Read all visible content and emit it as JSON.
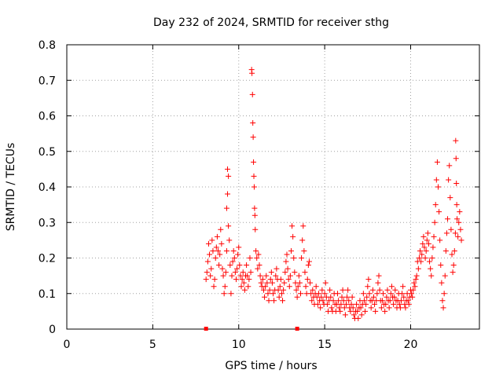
{
  "chart_data": {
    "type": "scatter",
    "title": "Day 232 of 2024, SRMTID for receiver sthg",
    "xlabel": "GPS time / hours",
    "ylabel": "SRMTID / TECUs",
    "xlim": [
      0,
      24
    ],
    "ylim": [
      0,
      0.8
    ],
    "xticks": [
      0,
      5,
      10,
      15,
      20
    ],
    "yticks": [
      0,
      0.1,
      0.2,
      0.3,
      0.4,
      0.5,
      0.6,
      0.7,
      0.8
    ],
    "xtick_labels": [
      "0",
      "5",
      "10",
      "15",
      "20"
    ],
    "ytick_labels": [
      "0",
      "0.1",
      "0.2",
      "0.3",
      "0.4",
      "0.5",
      "0.6",
      "0.7",
      "0.8"
    ],
    "grid": true,
    "marker": "+",
    "color": "#ff0000",
    "gap_markers": [
      {
        "x": 8.1,
        "y": 0
      },
      {
        "x": 13.4,
        "y": 0
      }
    ],
    "series": [
      {
        "name": "SRMTID",
        "points": [
          [
            8.1,
            0.14
          ],
          [
            8.15,
            0.16
          ],
          [
            8.2,
            0.19
          ],
          [
            8.25,
            0.24
          ],
          [
            8.3,
            0.21
          ],
          [
            8.35,
            0.15
          ],
          [
            8.4,
            0.17
          ],
          [
            8.45,
            0.25
          ],
          [
            8.5,
            0.22
          ],
          [
            8.55,
            0.12
          ],
          [
            8.6,
            0.14
          ],
          [
            8.65,
            0.2
          ],
          [
            8.7,
            0.23
          ],
          [
            8.75,
            0.26
          ],
          [
            8.8,
            0.22
          ],
          [
            8.85,
            0.18
          ],
          [
            8.9,
            0.21
          ],
          [
            8.95,
            0.28
          ],
          [
            9.0,
            0.24
          ],
          [
            9.05,
            0.17
          ],
          [
            9.1,
            0.15
          ],
          [
            9.15,
            0.1
          ],
          [
            9.2,
            0.12
          ],
          [
            9.25,
            0.16
          ],
          [
            9.3,
            0.22
          ],
          [
            9.3,
            0.34
          ],
          [
            9.35,
            0.38
          ],
          [
            9.35,
            0.45
          ],
          [
            9.4,
            0.43
          ],
          [
            9.4,
            0.29
          ],
          [
            9.45,
            0.25
          ],
          [
            9.5,
            0.18
          ],
          [
            9.55,
            0.1
          ],
          [
            9.6,
            0.15
          ],
          [
            9.65,
            0.19
          ],
          [
            9.7,
            0.22
          ],
          [
            9.75,
            0.2
          ],
          [
            9.8,
            0.16
          ],
          [
            9.85,
            0.14
          ],
          [
            9.9,
            0.17
          ],
          [
            9.95,
            0.21
          ],
          [
            10.0,
            0.23
          ],
          [
            10.05,
            0.18
          ],
          [
            10.1,
            0.15
          ],
          [
            10.15,
            0.12
          ],
          [
            10.2,
            0.14
          ],
          [
            10.25,
            0.16
          ],
          [
            10.3,
            0.13
          ],
          [
            10.35,
            0.11
          ],
          [
            10.4,
            0.15
          ],
          [
            10.45,
            0.18
          ],
          [
            10.5,
            0.15
          ],
          [
            10.55,
            0.12
          ],
          [
            10.6,
            0.14
          ],
          [
            10.65,
            0.2
          ],
          [
            10.7,
            0.16
          ],
          [
            10.75,
            0.73
          ],
          [
            10.77,
            0.72
          ],
          [
            10.8,
            0.66
          ],
          [
            10.82,
            0.58
          ],
          [
            10.84,
            0.54
          ],
          [
            10.86,
            0.47
          ],
          [
            10.88,
            0.43
          ],
          [
            10.9,
            0.4
          ],
          [
            10.92,
            0.34
          ],
          [
            10.94,
            0.32
          ],
          [
            10.96,
            0.28
          ],
          [
            11.0,
            0.22
          ],
          [
            11.05,
            0.2
          ],
          [
            11.1,
            0.17
          ],
          [
            11.15,
            0.21
          ],
          [
            11.2,
            0.18
          ],
          [
            11.25,
            0.15
          ],
          [
            11.3,
            0.13
          ],
          [
            11.35,
            0.12
          ],
          [
            11.4,
            0.14
          ],
          [
            11.45,
            0.11
          ],
          [
            11.5,
            0.09
          ],
          [
            11.55,
            0.12
          ],
          [
            11.6,
            0.15
          ],
          [
            11.65,
            0.13
          ],
          [
            11.7,
            0.1
          ],
          [
            11.75,
            0.08
          ],
          [
            11.8,
            0.11
          ],
          [
            11.85,
            0.14
          ],
          [
            11.9,
            0.16
          ],
          [
            11.95,
            0.13
          ],
          [
            12.0,
            0.1
          ],
          [
            12.05,
            0.08
          ],
          [
            12.1,
            0.11
          ],
          [
            12.15,
            0.15
          ],
          [
            12.2,
            0.17
          ],
          [
            12.25,
            0.14
          ],
          [
            12.3,
            0.11
          ],
          [
            12.35,
            0.09
          ],
          [
            12.4,
            0.12
          ],
          [
            12.45,
            0.14
          ],
          [
            12.5,
            0.1
          ],
          [
            12.55,
            0.08
          ],
          [
            12.6,
            0.11
          ],
          [
            12.65,
            0.13
          ],
          [
            12.7,
            0.16
          ],
          [
            12.75,
            0.19
          ],
          [
            12.8,
            0.21
          ],
          [
            12.85,
            0.17
          ],
          [
            12.9,
            0.14
          ],
          [
            12.95,
            0.12
          ],
          [
            13.0,
            0.15
          ],
          [
            13.05,
            0.22
          ],
          [
            13.1,
            0.29
          ],
          [
            13.15,
            0.26
          ],
          [
            13.2,
            0.2
          ],
          [
            13.25,
            0.16
          ],
          [
            13.3,
            0.13
          ],
          [
            13.35,
            0.11
          ],
          [
            13.4,
            0.09
          ],
          [
            13.45,
            0.12
          ],
          [
            13.5,
            0.15
          ],
          [
            13.55,
            0.13
          ],
          [
            13.6,
            0.1
          ],
          [
            13.65,
            0.2
          ],
          [
            13.7,
            0.25
          ],
          [
            13.75,
            0.29
          ],
          [
            13.8,
            0.22
          ],
          [
            13.85,
            0.16
          ],
          [
            13.9,
            0.12
          ],
          [
            13.95,
            0.1
          ],
          [
            14.0,
            0.14
          ],
          [
            14.05,
            0.18
          ],
          [
            14.1,
            0.19
          ],
          [
            14.15,
            0.13
          ],
          [
            14.2,
            0.1
          ],
          [
            14.25,
            0.08
          ],
          [
            14.3,
            0.11
          ],
          [
            14.35,
            0.09
          ],
          [
            14.4,
            0.07
          ],
          [
            14.45,
            0.1
          ],
          [
            14.5,
            0.12
          ],
          [
            14.55,
            0.09
          ],
          [
            14.6,
            0.07
          ],
          [
            14.65,
            0.1
          ],
          [
            14.7,
            0.08
          ],
          [
            14.75,
            0.06
          ],
          [
            14.8,
            0.09
          ],
          [
            14.85,
            0.11
          ],
          [
            14.9,
            0.08
          ],
          [
            14.95,
            0.07
          ],
          [
            15.0,
            0.1
          ],
          [
            15.05,
            0.13
          ],
          [
            15.1,
            0.09
          ],
          [
            15.15,
            0.07
          ],
          [
            15.2,
            0.05
          ],
          [
            15.25,
            0.08
          ],
          [
            15.3,
            0.11
          ],
          [
            15.35,
            0.09
          ],
          [
            15.4,
            0.06
          ],
          [
            15.45,
            0.05
          ],
          [
            15.5,
            0.08
          ],
          [
            15.55,
            0.1
          ],
          [
            15.6,
            0.07
          ],
          [
            15.65,
            0.05
          ],
          [
            15.7,
            0.07
          ],
          [
            15.75,
            0.1
          ],
          [
            15.8,
            0.08
          ],
          [
            15.85,
            0.06
          ],
          [
            15.9,
            0.05
          ],
          [
            15.95,
            0.07
          ],
          [
            16.0,
            0.09
          ],
          [
            16.05,
            0.11
          ],
          [
            16.1,
            0.08
          ],
          [
            16.15,
            0.06
          ],
          [
            16.2,
            0.04
          ],
          [
            16.25,
            0.07
          ],
          [
            16.3,
            0.09
          ],
          [
            16.35,
            0.11
          ],
          [
            16.4,
            0.08
          ],
          [
            16.45,
            0.06
          ],
          [
            16.5,
            0.05
          ],
          [
            16.55,
            0.07
          ],
          [
            16.6,
            0.09
          ],
          [
            16.65,
            0.06
          ],
          [
            16.7,
            0.04
          ],
          [
            16.75,
            0.03
          ],
          [
            16.8,
            0.05
          ],
          [
            16.85,
            0.07
          ],
          [
            16.9,
            0.05
          ],
          [
            16.95,
            0.03
          ],
          [
            17.0,
            0.06
          ],
          [
            17.05,
            0.08
          ],
          [
            17.1,
            0.06
          ],
          [
            17.15,
            0.04
          ],
          [
            17.2,
            0.07
          ],
          [
            17.25,
            0.1
          ],
          [
            17.3,
            0.08
          ],
          [
            17.35,
            0.05
          ],
          [
            17.4,
            0.07
          ],
          [
            17.45,
            0.09
          ],
          [
            17.5,
            0.12
          ],
          [
            17.55,
            0.14
          ],
          [
            17.6,
            0.1
          ],
          [
            17.65,
            0.08
          ],
          [
            17.7,
            0.06
          ],
          [
            17.75,
            0.08
          ],
          [
            17.8,
            0.11
          ],
          [
            17.85,
            0.09
          ],
          [
            17.9,
            0.07
          ],
          [
            17.95,
            0.05
          ],
          [
            18.0,
            0.08
          ],
          [
            18.05,
            0.1
          ],
          [
            18.1,
            0.13
          ],
          [
            18.15,
            0.15
          ],
          [
            18.2,
            0.11
          ],
          [
            18.25,
            0.08
          ],
          [
            18.3,
            0.06
          ],
          [
            18.35,
            0.08
          ],
          [
            18.4,
            0.1
          ],
          [
            18.45,
            0.07
          ],
          [
            18.5,
            0.05
          ],
          [
            18.55,
            0.07
          ],
          [
            18.6,
            0.09
          ],
          [
            18.65,
            0.11
          ],
          [
            18.7,
            0.08
          ],
          [
            18.75,
            0.06
          ],
          [
            18.8,
            0.08
          ],
          [
            18.85,
            0.1
          ],
          [
            18.9,
            0.12
          ],
          [
            18.95,
            0.09
          ],
          [
            19.0,
            0.07
          ],
          [
            19.05,
            0.09
          ],
          [
            19.1,
            0.11
          ],
          [
            19.15,
            0.08
          ],
          [
            19.2,
            0.06
          ],
          [
            19.25,
            0.08
          ],
          [
            19.3,
            0.1
          ],
          [
            19.35,
            0.07
          ],
          [
            19.4,
            0.06
          ],
          [
            19.45,
            0.08
          ],
          [
            19.5,
            0.1
          ],
          [
            19.55,
            0.12
          ],
          [
            19.6,
            0.09
          ],
          [
            19.65,
            0.07
          ],
          [
            19.7,
            0.06
          ],
          [
            19.75,
            0.08
          ],
          [
            19.8,
            0.1
          ],
          [
            19.85,
            0.08
          ],
          [
            19.9,
            0.07
          ],
          [
            19.95,
            0.09
          ],
          [
            20.0,
            0.11
          ],
          [
            20.05,
            0.1
          ],
          [
            20.1,
            0.09
          ],
          [
            20.15,
            0.11
          ],
          [
            20.2,
            0.13
          ],
          [
            20.25,
            0.12
          ],
          [
            20.3,
            0.14
          ],
          [
            20.35,
            0.15
          ],
          [
            20.4,
            0.19
          ],
          [
            20.45,
            0.17
          ],
          [
            20.5,
            0.2
          ],
          [
            20.55,
            0.22
          ],
          [
            20.6,
            0.19
          ],
          [
            20.65,
            0.21
          ],
          [
            20.7,
            0.24
          ],
          [
            20.75,
            0.26
          ],
          [
            20.8,
            0.23
          ],
          [
            20.85,
            0.2
          ],
          [
            20.9,
            0.22
          ],
          [
            20.95,
            0.25
          ],
          [
            21.0,
            0.27
          ],
          [
            21.05,
            0.24
          ],
          [
            21.1,
            0.19
          ],
          [
            21.15,
            0.17
          ],
          [
            21.2,
            0.15
          ],
          [
            21.25,
            0.2
          ],
          [
            21.3,
            0.23
          ],
          [
            21.35,
            0.26
          ],
          [
            21.4,
            0.3
          ],
          [
            21.45,
            0.35
          ],
          [
            21.5,
            0.42
          ],
          [
            21.55,
            0.47
          ],
          [
            21.6,
            0.4
          ],
          [
            21.65,
            0.33
          ],
          [
            21.7,
            0.25
          ],
          [
            21.75,
            0.18
          ],
          [
            21.8,
            0.13
          ],
          [
            21.85,
            0.08
          ],
          [
            21.9,
            0.06
          ],
          [
            21.95,
            0.1
          ],
          [
            22.0,
            0.15
          ],
          [
            22.05,
            0.22
          ],
          [
            22.1,
            0.27
          ],
          [
            22.15,
            0.31
          ],
          [
            22.2,
            0.42
          ],
          [
            22.25,
            0.46
          ],
          [
            22.3,
            0.37
          ],
          [
            22.35,
            0.28
          ],
          [
            22.4,
            0.21
          ],
          [
            22.45,
            0.16
          ],
          [
            22.5,
            0.18
          ],
          [
            22.55,
            0.22
          ],
          [
            22.6,
            0.27
          ],
          [
            22.62,
            0.53
          ],
          [
            22.64,
            0.48
          ],
          [
            22.66,
            0.41
          ],
          [
            22.68,
            0.35
          ],
          [
            22.7,
            0.31
          ],
          [
            22.75,
            0.26
          ],
          [
            22.8,
            0.3
          ],
          [
            22.85,
            0.33
          ],
          [
            22.9,
            0.28
          ],
          [
            22.95,
            0.25
          ]
        ]
      }
    ]
  }
}
